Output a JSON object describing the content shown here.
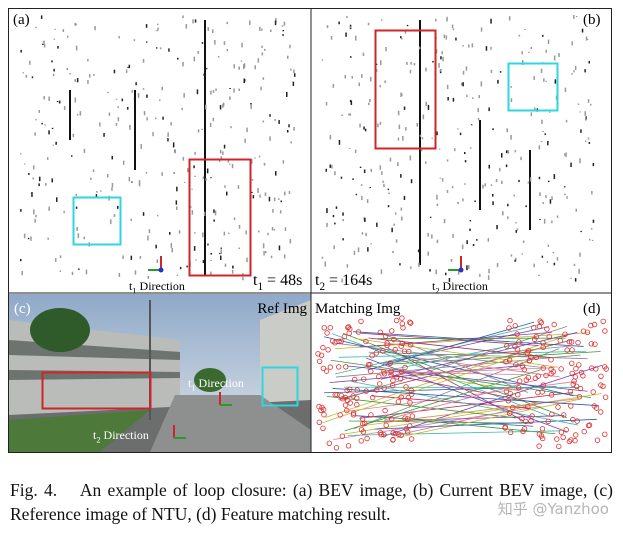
{
  "figure": {
    "panel_a": {
      "label": "(a)",
      "time": {
        "base": "t",
        "sub": "1",
        "rest": " = 48s"
      },
      "direction": {
        "base": "t",
        "sub": "1",
        "rest": " Direction"
      }
    },
    "panel_b": {
      "label": "(b)",
      "time": {
        "base": "t",
        "sub": "2",
        "rest": " = 164s"
      },
      "direction": {
        "base": "t",
        "sub": "2",
        "rest": " Direction"
      }
    },
    "panel_c": {
      "label": "(c)",
      "title": "Ref Img",
      "direction_1": {
        "base": "t",
        "sub": "1",
        "rest": " Direction"
      },
      "direction_2": {
        "base": "t",
        "sub": "2",
        "rest": " Direction"
      }
    },
    "panel_d": {
      "label": "(d)",
      "title": "Matching Img"
    }
  },
  "caption": "Fig. 4.  An example of loop closure: (a) BEV image, (b) Current BEV image, (c) Reference image of NTU, (d) Feature matching result.",
  "watermark": "知乎 @Yanzhoo"
}
